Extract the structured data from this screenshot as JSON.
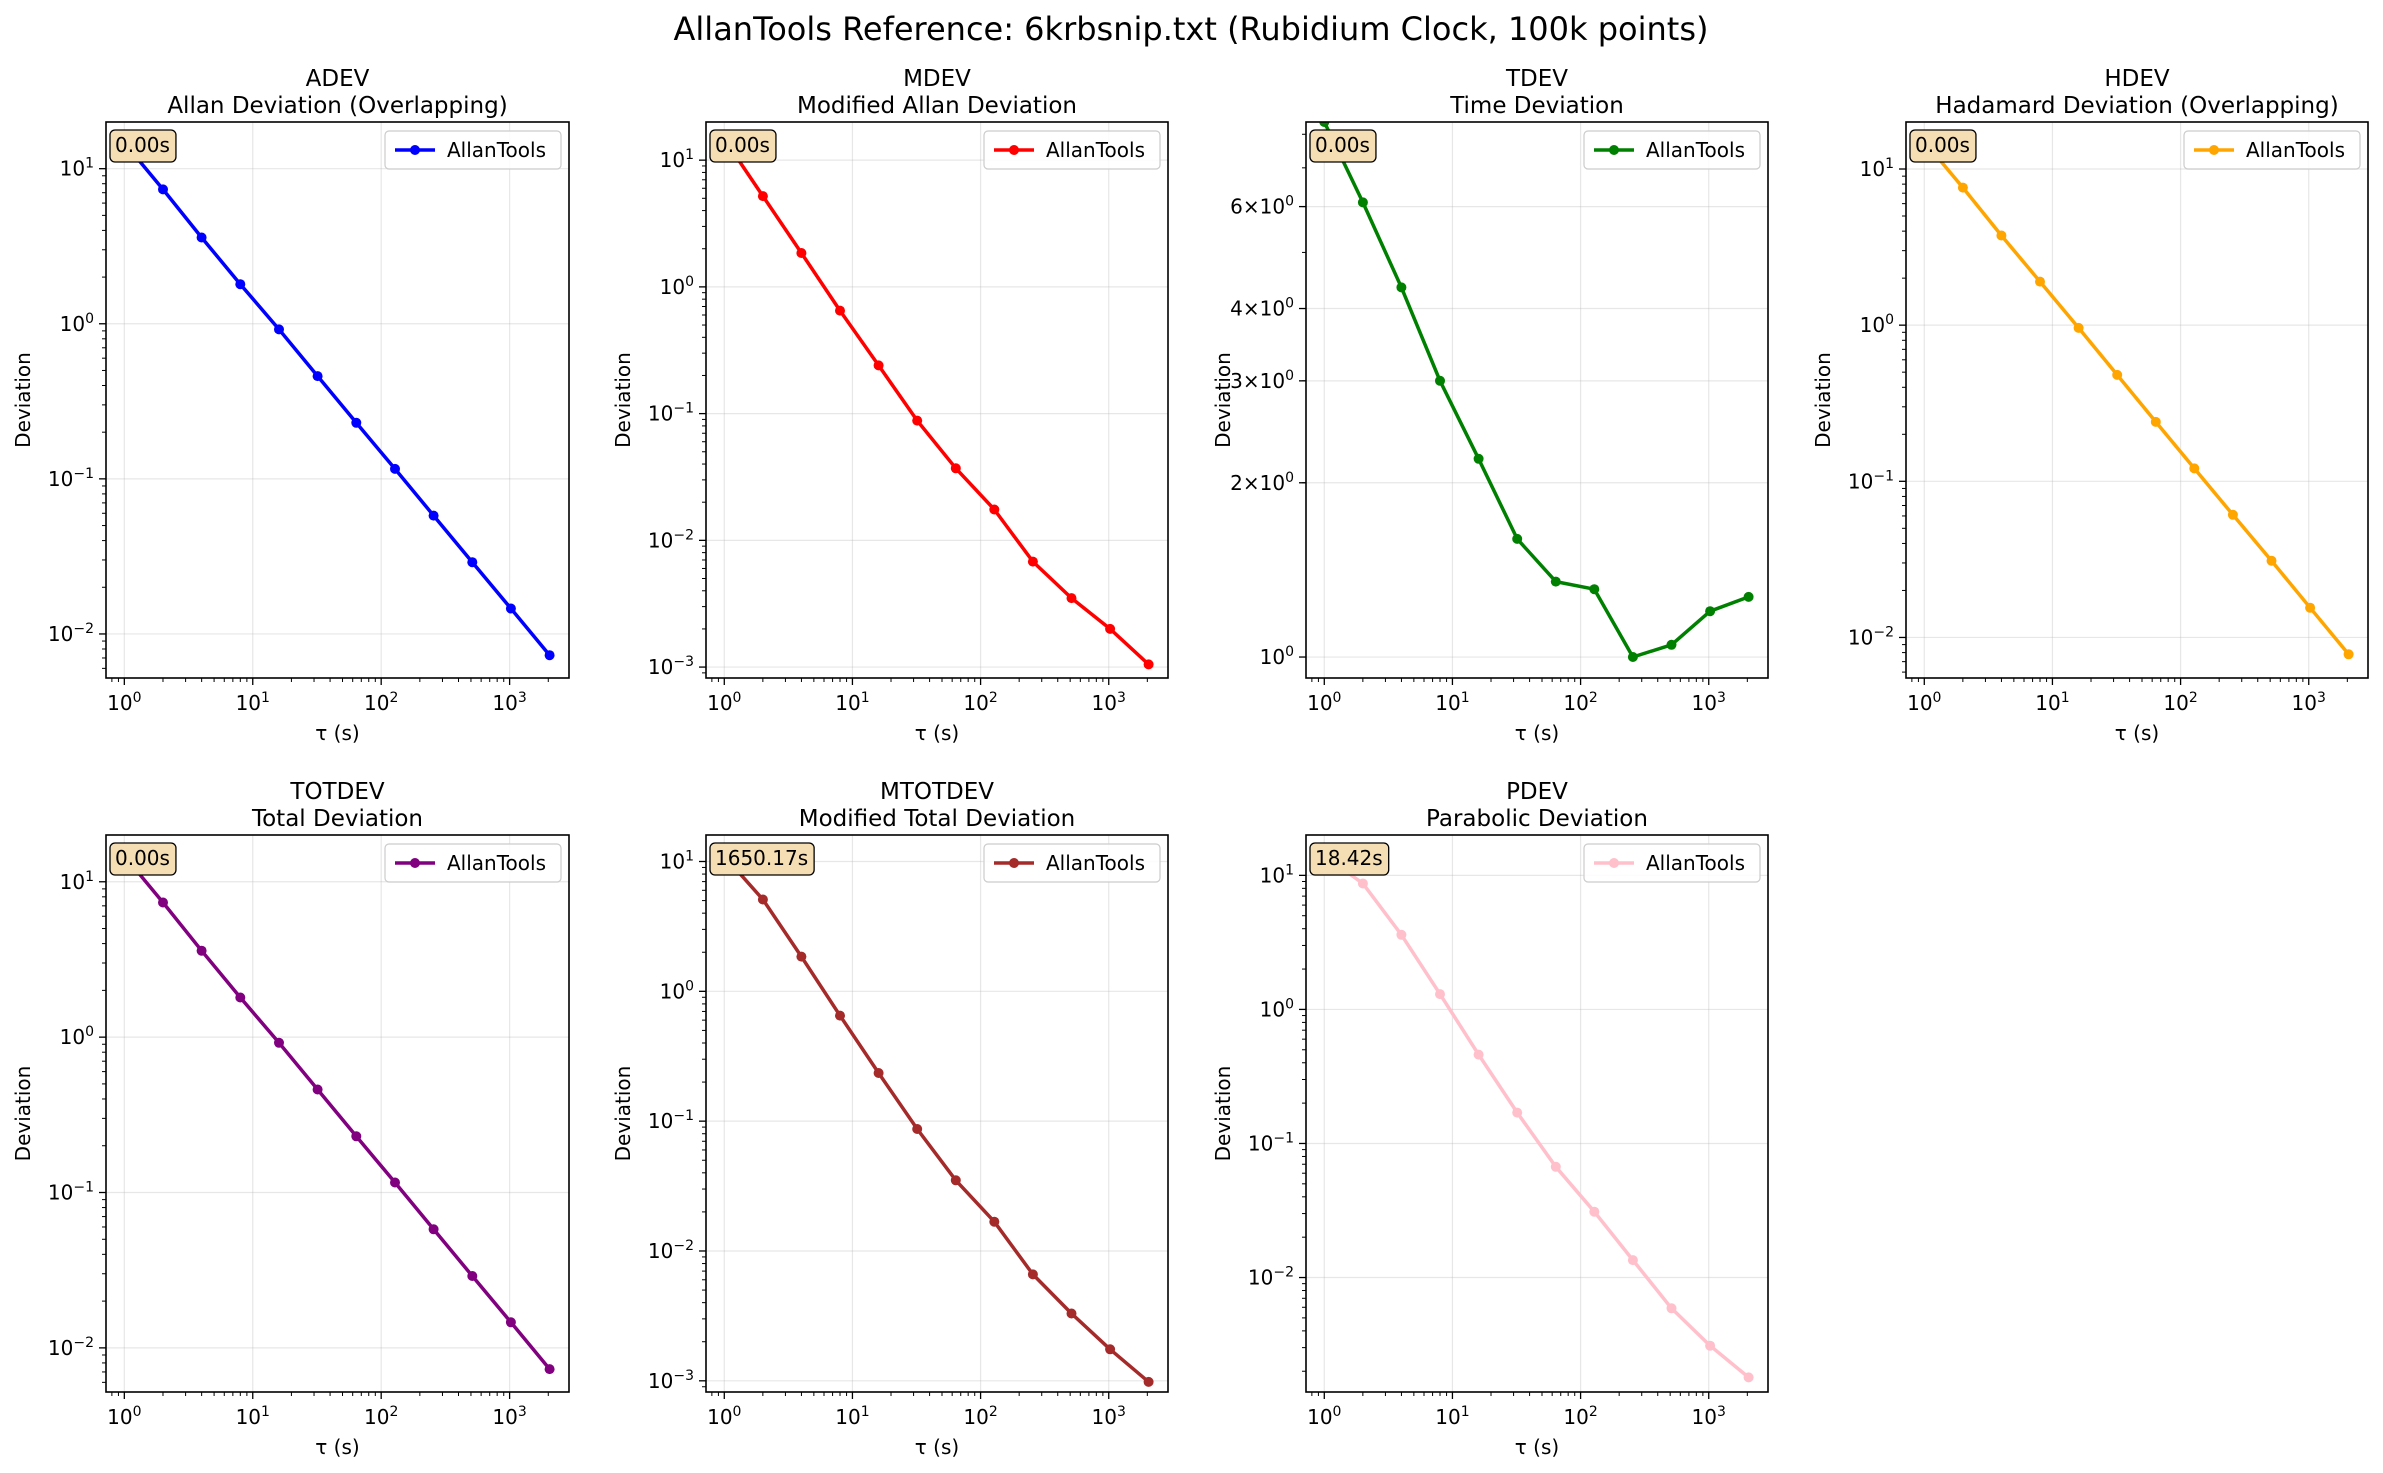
{
  "figure": {
    "title": "AllanTools Reference: 6krbsnip.txt (Rubidium Clock, 100k points)"
  },
  "chart_data": [
    {
      "type": "line",
      "name": "ADEV",
      "title": "ADEV",
      "subtitle": "Allan Deviation (Overlapping)",
      "xlabel": "τ (s)",
      "ylabel": "Deviation",
      "x_scale": "log",
      "y_scale": "log",
      "xlim": [
        0.72,
        2900
      ],
      "ylim": [
        0.0052,
        20
      ],
      "x_ticks": [
        {
          "v": 1,
          "label": "10^0"
        },
        {
          "v": 10,
          "label": "10^1"
        },
        {
          "v": 100,
          "label": "10^2"
        },
        {
          "v": 1000,
          "label": "10^3"
        }
      ],
      "y_ticks": [
        {
          "v": 10,
          "label": "10^1"
        },
        {
          "v": 1,
          "label": "10^0"
        },
        {
          "v": 0.1,
          "label": "10^-1"
        },
        {
          "v": 0.01,
          "label": "10^-2"
        }
      ],
      "grid": true,
      "legend": "top-right",
      "time_label": "0.00s",
      "series": [
        {
          "name": "AllanTools",
          "color": "#0000ff",
          "x": [
            1,
            2,
            4,
            8,
            16,
            32,
            64,
            128,
            256,
            512,
            1024,
            2048
          ],
          "y": [
            14.7,
            7.35,
            3.6,
            1.8,
            0.92,
            0.46,
            0.23,
            0.116,
            0.058,
            0.029,
            0.0146,
            0.0073
          ]
        }
      ]
    },
    {
      "type": "line",
      "name": "MDEV",
      "title": "MDEV",
      "subtitle": "Modified Allan Deviation",
      "xlabel": "τ (s)",
      "ylabel": "Deviation",
      "x_scale": "log",
      "y_scale": "log",
      "xlim": [
        0.72,
        2900
      ],
      "ylim": [
        0.00082,
        20
      ],
      "x_ticks": [
        {
          "v": 1,
          "label": "10^0"
        },
        {
          "v": 10,
          "label": "10^1"
        },
        {
          "v": 100,
          "label": "10^2"
        },
        {
          "v": 1000,
          "label": "10^3"
        }
      ],
      "y_ticks": [
        {
          "v": 10,
          "label": "10^1"
        },
        {
          "v": 1,
          "label": "10^0"
        },
        {
          "v": 0.1,
          "label": "10^-1"
        },
        {
          "v": 0.01,
          "label": "10^-2"
        },
        {
          "v": 0.001,
          "label": "10^-3"
        }
      ],
      "grid": true,
      "legend": "top-right",
      "time_label": "0.00s",
      "series": [
        {
          "name": "AllanTools",
          "color": "#ff0000",
          "x": [
            1,
            2,
            4,
            8,
            16,
            32,
            64,
            128,
            256,
            512,
            1024,
            2048
          ],
          "y": [
            14.7,
            5.2,
            1.85,
            0.65,
            0.24,
            0.088,
            0.037,
            0.0175,
            0.0068,
            0.0035,
            0.002,
            0.00105
          ]
        }
      ]
    },
    {
      "type": "line",
      "name": "TDEV",
      "title": "TDEV",
      "subtitle": "Time Deviation",
      "xlabel": "τ (s)",
      "ylabel": "Deviation",
      "x_scale": "log",
      "y_scale": "log",
      "xlim": [
        0.72,
        2900
      ],
      "ylim": [
        0.92,
        8.4
      ],
      "x_ticks": [
        {
          "v": 1,
          "label": "10^0"
        },
        {
          "v": 10,
          "label": "10^1"
        },
        {
          "v": 100,
          "label": "10^2"
        },
        {
          "v": 1000,
          "label": "10^3"
        }
      ],
      "y_ticks": [
        {
          "v": 6,
          "label": "6×10^0"
        },
        {
          "v": 4,
          "label": "4×10^0"
        },
        {
          "v": 3,
          "label": "3×10^0"
        },
        {
          "v": 2,
          "label": "2×10^0"
        },
        {
          "v": 1,
          "label": "10^0"
        }
      ],
      "grid": true,
      "legend": "top-right",
      "time_label": "0.00s",
      "series": [
        {
          "name": "AllanTools",
          "color": "#008000",
          "x": [
            1,
            2,
            4,
            8,
            16,
            32,
            64,
            128,
            256,
            512,
            1024,
            2048
          ],
          "y": [
            8.4,
            6.1,
            4.35,
            3.0,
            2.2,
            1.6,
            1.35,
            1.31,
            1.0,
            1.05,
            1.2,
            1.27
          ]
        }
      ]
    },
    {
      "type": "line",
      "name": "HDEV",
      "title": "HDEV",
      "subtitle": "Hadamard Deviation (Overlapping)",
      "xlabel": "τ (s)",
      "ylabel": "Deviation",
      "x_scale": "log",
      "y_scale": "log",
      "xlim": [
        0.72,
        2900
      ],
      "ylim": [
        0.0055,
        20
      ],
      "x_ticks": [
        {
          "v": 1,
          "label": "10^0"
        },
        {
          "v": 10,
          "label": "10^1"
        },
        {
          "v": 100,
          "label": "10^2"
        },
        {
          "v": 1000,
          "label": "10^3"
        }
      ],
      "y_ticks": [
        {
          "v": 10,
          "label": "10^1"
        },
        {
          "v": 1,
          "label": "10^0"
        },
        {
          "v": 0.1,
          "label": "10^-1"
        },
        {
          "v": 0.01,
          "label": "10^-2"
        }
      ],
      "grid": true,
      "legend": "top-right",
      "time_label": "0.00s",
      "series": [
        {
          "name": "AllanTools",
          "color": "#ffa500",
          "x": [
            1,
            2,
            4,
            8,
            16,
            32,
            64,
            128,
            256,
            512,
            1024,
            2048
          ],
          "y": [
            15.0,
            7.6,
            3.75,
            1.9,
            0.96,
            0.48,
            0.24,
            0.121,
            0.061,
            0.031,
            0.0155,
            0.0078
          ]
        }
      ]
    },
    {
      "type": "line",
      "name": "TOTDEV",
      "title": "TOTDEV",
      "subtitle": "Total Deviation",
      "xlabel": "τ (s)",
      "ylabel": "Deviation",
      "x_scale": "log",
      "y_scale": "log",
      "xlim": [
        0.72,
        2900
      ],
      "ylim": [
        0.0052,
        20
      ],
      "x_ticks": [
        {
          "v": 1,
          "label": "10^0"
        },
        {
          "v": 10,
          "label": "10^1"
        },
        {
          "v": 100,
          "label": "10^2"
        },
        {
          "v": 1000,
          "label": "10^3"
        }
      ],
      "y_ticks": [
        {
          "v": 10,
          "label": "10^1"
        },
        {
          "v": 1,
          "label": "10^0"
        },
        {
          "v": 0.1,
          "label": "10^-1"
        },
        {
          "v": 0.01,
          "label": "10^-2"
        }
      ],
      "grid": true,
      "legend": "top-right",
      "time_label": "0.00s",
      "series": [
        {
          "name": "AllanTools",
          "color": "#800080",
          "x": [
            1,
            2,
            4,
            8,
            16,
            32,
            64,
            128,
            256,
            512,
            1024,
            2048
          ],
          "y": [
            14.7,
            7.35,
            3.6,
            1.8,
            0.92,
            0.46,
            0.23,
            0.116,
            0.058,
            0.029,
            0.0146,
            0.0073
          ]
        }
      ]
    },
    {
      "type": "line",
      "name": "MTOTDEV",
      "title": "MTOTDEV",
      "subtitle": "Modified Total Deviation",
      "xlabel": "τ (s)",
      "ylabel": "Deviation",
      "x_scale": "log",
      "y_scale": "log",
      "xlim": [
        0.72,
        2900
      ],
      "ylim": [
        0.00082,
        16
      ],
      "x_ticks": [
        {
          "v": 1,
          "label": "10^0"
        },
        {
          "v": 10,
          "label": "10^1"
        },
        {
          "v": 100,
          "label": "10^2"
        },
        {
          "v": 1000,
          "label": "10^3"
        }
      ],
      "y_ticks": [
        {
          "v": 10,
          "label": "10^1"
        },
        {
          "v": 1,
          "label": "10^0"
        },
        {
          "v": 0.1,
          "label": "10^-1"
        },
        {
          "v": 0.01,
          "label": "10^-2"
        },
        {
          "v": 0.001,
          "label": "10^-3"
        }
      ],
      "grid": true,
      "legend": "top-right",
      "time_label": "1650.17s",
      "series": [
        {
          "name": "AllanTools",
          "color": "#a52a2a",
          "x": [
            1,
            2,
            4,
            8,
            16,
            32,
            64,
            128,
            256,
            512,
            1024,
            2048
          ],
          "y": [
            11.0,
            5.1,
            1.85,
            0.65,
            0.235,
            0.087,
            0.035,
            0.0168,
            0.0066,
            0.0033,
            0.00175,
            0.00098
          ]
        }
      ]
    },
    {
      "type": "line",
      "name": "PDEV",
      "title": "PDEV",
      "subtitle": "Parabolic Deviation",
      "xlabel": "τ (s)",
      "ylabel": "Deviation",
      "x_scale": "log",
      "y_scale": "log",
      "xlim": [
        0.72,
        2900
      ],
      "ylim": [
        0.0014,
        20
      ],
      "x_ticks": [
        {
          "v": 1,
          "label": "10^0"
        },
        {
          "v": 10,
          "label": "10^1"
        },
        {
          "v": 100,
          "label": "10^2"
        },
        {
          "v": 1000,
          "label": "10^3"
        }
      ],
      "y_ticks": [
        {
          "v": 10,
          "label": "10^1"
        },
        {
          "v": 1,
          "label": "10^0"
        },
        {
          "v": 0.1,
          "label": "10^-1"
        },
        {
          "v": 0.01,
          "label": "10^-2"
        }
      ],
      "grid": true,
      "legend": "top-right",
      "time_label": "18.42s",
      "series": [
        {
          "name": "AllanTools",
          "color": "#ffc0cb",
          "x": [
            1,
            2,
            4,
            8,
            16,
            32,
            64,
            128,
            256,
            512,
            1024,
            2048
          ],
          "y": [
            14.0,
            8.7,
            3.6,
            1.3,
            0.46,
            0.17,
            0.067,
            0.031,
            0.0135,
            0.0059,
            0.0031,
            0.0018
          ]
        }
      ]
    }
  ]
}
